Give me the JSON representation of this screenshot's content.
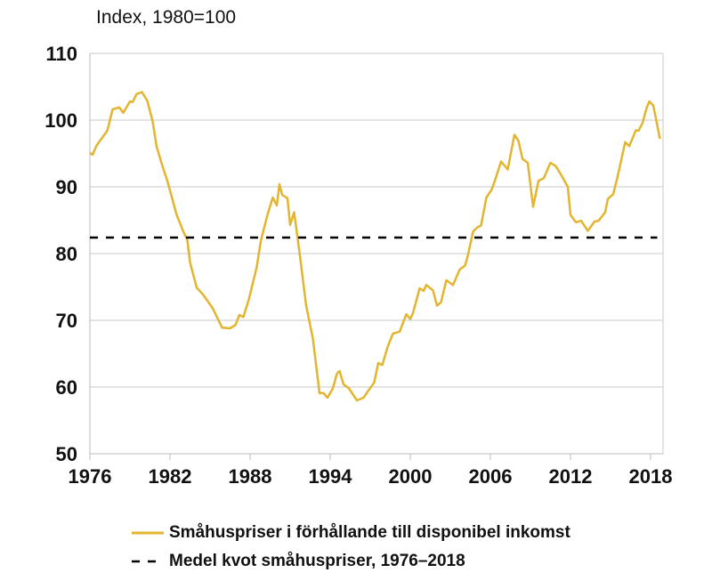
{
  "chart_data": {
    "type": "line",
    "title": "Index, 1980=100",
    "xlabel": "",
    "ylabel": "",
    "xlim": [
      1976,
      2018.9
    ],
    "ylim": [
      50,
      110
    ],
    "grid": true,
    "x_ticks": [
      1976,
      1982,
      1988,
      1994,
      2000,
      2006,
      2012,
      2018
    ],
    "x_tick_labels": [
      "1976",
      "1982",
      "1988",
      "1994",
      "2000",
      "2006",
      "2012",
      "2018"
    ],
    "y_ticks": [
      50,
      60,
      70,
      80,
      90,
      100,
      110
    ],
    "y_tick_labels": [
      "50",
      "60",
      "70",
      "80",
      "90",
      "100",
      "110"
    ],
    "legend_position": "bottom",
    "series": [
      {
        "name": "Småhuspriser i förhållande till disponibel inkomst",
        "color": "#E3B52F",
        "style": "solid",
        "x": [
          1976.0,
          1976.2,
          1976.5,
          1976.9,
          1977.3,
          1977.7,
          1978.2,
          1978.5,
          1979.0,
          1979.2,
          1979.5,
          1979.9,
          1980.3,
          1980.7,
          1981.0,
          1981.5,
          1981.8,
          1982.5,
          1983.0,
          1983.3,
          1983.5,
          1984.0,
          1984.5,
          1985.2,
          1985.9,
          1986.5,
          1986.9,
          1987.2,
          1987.5,
          1987.9,
          1988.5,
          1988.8,
          1989.3,
          1989.7,
          1990.0,
          1990.2,
          1990.4,
          1990.8,
          1991.0,
          1991.3,
          1991.7,
          1992.2,
          1992.7,
          1993.2,
          1993.5,
          1993.8,
          1994.2,
          1994.5,
          1994.7,
          1995.0,
          1995.4,
          1996.0,
          1996.5,
          1996.8,
          1997.3,
          1997.6,
          1997.9,
          1998.3,
          1998.7,
          1999.2,
          1999.7,
          2000.0,
          2000.2,
          2000.7,
          2001.0,
          2001.2,
          2001.7,
          2002.0,
          2002.3,
          2002.7,
          2003.2,
          2003.7,
          2004.1,
          2004.3,
          2004.7,
          2005.0,
          2005.3,
          2005.7,
          2006.1,
          2006.4,
          2006.8,
          2007.3,
          2007.8,
          2008.1,
          2008.4,
          2008.8,
          2009.2,
          2009.6,
          2010.0,
          2010.5,
          2010.9,
          2011.3,
          2011.8,
          2012.0,
          2012.4,
          2012.8,
          2013.3,
          2013.8,
          2014.1,
          2014.6,
          2014.8,
          2015.2,
          2015.5,
          2016.1,
          2016.4,
          2016.9,
          2017.1,
          2017.4,
          2017.7,
          2017.9,
          2018.2,
          2018.7
        ],
        "values": [
          95.1,
          94.8,
          96.2,
          97.3,
          98.4,
          101.6,
          101.9,
          101.1,
          102.8,
          102.7,
          103.9,
          104.2,
          102.9,
          99.8,
          96.0,
          92.7,
          90.9,
          85.8,
          83.3,
          82.0,
          78.7,
          74.9,
          73.8,
          71.8,
          68.9,
          68.8,
          69.3,
          70.8,
          70.5,
          73.1,
          78.0,
          81.9,
          85.8,
          88.4,
          87.2,
          90.4,
          88.8,
          88.3,
          84.3,
          86.2,
          80.2,
          72.2,
          67.3,
          59.1,
          59.1,
          58.4,
          59.8,
          62.0,
          62.4,
          60.4,
          59.8,
          58.0,
          58.4,
          59.3,
          60.7,
          63.6,
          63.3,
          66.0,
          68.0,
          68.3,
          70.9,
          70.2,
          71.1,
          74.8,
          74.4,
          75.3,
          74.5,
          72.2,
          72.7,
          76.0,
          75.3,
          77.6,
          78.2,
          79.6,
          83.3,
          83.9,
          84.2,
          88.4,
          89.6,
          91.3,
          93.8,
          92.6,
          97.8,
          96.9,
          94.2,
          93.6,
          87.0,
          90.9,
          91.3,
          93.6,
          93.1,
          91.8,
          90.0,
          85.8,
          84.7,
          84.9,
          83.4,
          84.8,
          84.9,
          86.2,
          88.2,
          88.9,
          91.3,
          96.7,
          96.1,
          98.5,
          98.4,
          99.6,
          101.8,
          102.8,
          102.2,
          97.2
        ]
      },
      {
        "name": "Medel kvot småhuspriser, 1976–2018",
        "color": "#000000",
        "style": "dashed",
        "x": [
          1976.0,
          2018.5
        ],
        "values": [
          82.4,
          82.4
        ]
      }
    ]
  }
}
